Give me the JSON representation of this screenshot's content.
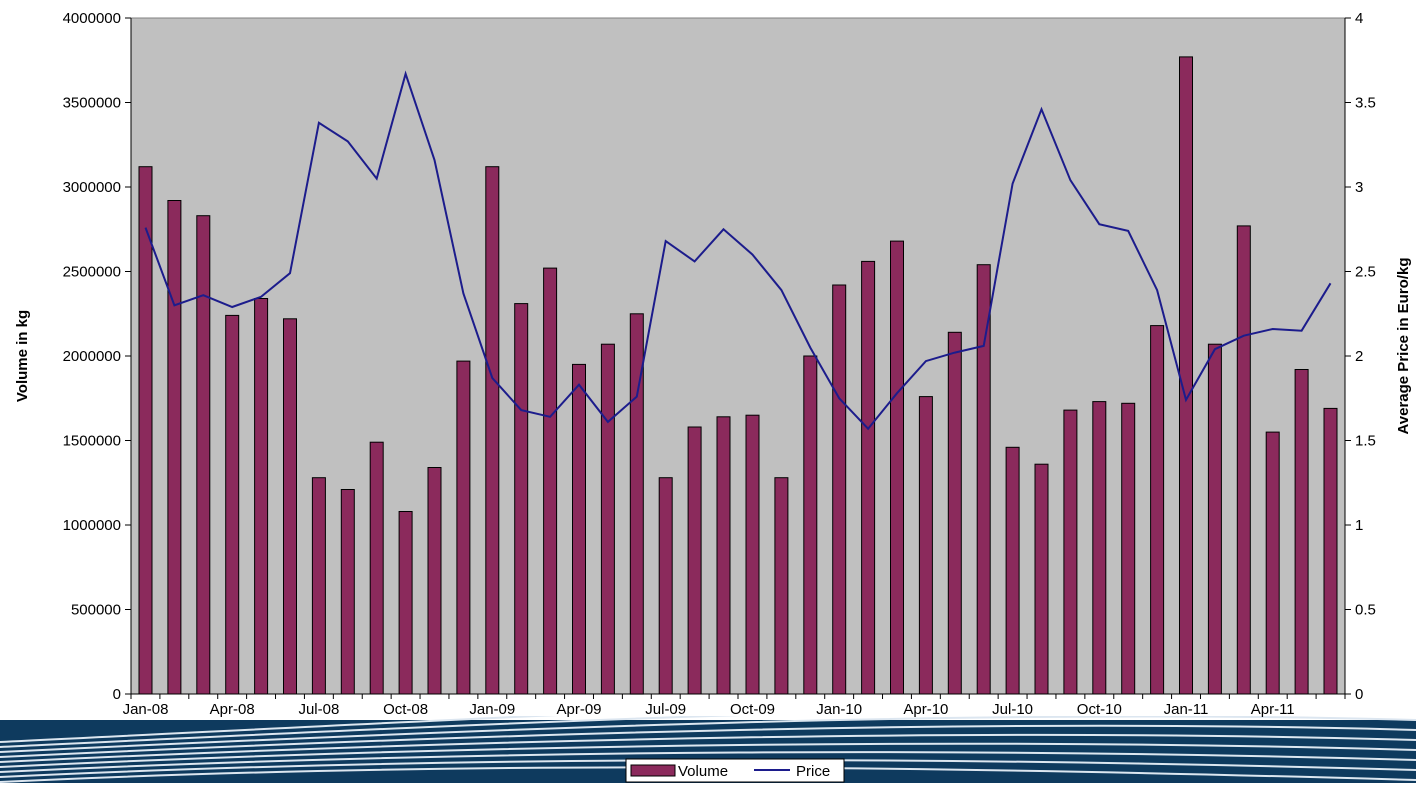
{
  "chart_data": {
    "type": "bar",
    "title": "",
    "xlabel": "",
    "ylabel": "Volume in kg",
    "y2label": "Average Price in Euro/kg",
    "ylim": [
      0,
      4000000
    ],
    "y2lim": [
      0,
      4
    ],
    "yticks": [
      "0",
      "500000",
      "1000000",
      "1500000",
      "2000000",
      "2500000",
      "3000000",
      "3500000",
      "4000000"
    ],
    "y2ticks": [
      "0",
      "0.5",
      "1",
      "1.5",
      "2",
      "2.5",
      "3",
      "3.5",
      "4"
    ],
    "xticks": [
      "Jan-08",
      "Apr-08",
      "Jul-08",
      "Oct-08",
      "Jan-09",
      "Apr-09",
      "Jul-09",
      "Oct-09",
      "Jan-10",
      "Apr-10",
      "Jul-10",
      "Oct-10",
      "Jan-11",
      "Apr-11"
    ],
    "grid": false,
    "legend_position": "bottom-center",
    "categories": [
      "Jan-08",
      "Feb-08",
      "Mar-08",
      "Apr-08",
      "May-08",
      "Jun-08",
      "Jul-08",
      "Aug-08",
      "Sep-08",
      "Oct-08",
      "Nov-08",
      "Dec-08",
      "Jan-09",
      "Feb-09",
      "Mar-09",
      "Apr-09",
      "May-09",
      "Jun-09",
      "Jul-09",
      "Aug-09",
      "Sep-09",
      "Oct-09",
      "Nov-09",
      "Dec-09",
      "Jan-10",
      "Feb-10",
      "Mar-10",
      "Apr-10",
      "May-10",
      "Jun-10",
      "Jul-10",
      "Aug-10",
      "Sep-10",
      "Oct-10",
      "Nov-10",
      "Dec-10",
      "Jan-11",
      "Feb-11",
      "Mar-11",
      "Apr-11",
      "May-11",
      "Jun-11"
    ],
    "series": [
      {
        "name": "Volume",
        "type": "bar",
        "axis": "left",
        "color": "#8B2A5C",
        "values": [
          3120000,
          2920000,
          2830000,
          2240000,
          2340000,
          2220000,
          1280000,
          1210000,
          1490000,
          1080000,
          1340000,
          1970000,
          3120000,
          2310000,
          2520000,
          1950000,
          2070000,
          2250000,
          1280000,
          1580000,
          1640000,
          1650000,
          1280000,
          2000000,
          2420000,
          2560000,
          2680000,
          1760000,
          2140000,
          2540000,
          1460000,
          1360000,
          1680000,
          1730000,
          1720000,
          2180000,
          3770000,
          2070000,
          2770000,
          1550000,
          1920000,
          1690000
        ]
      },
      {
        "name": "Price",
        "type": "line",
        "axis": "right",
        "color": "#1C1C8C",
        "values": [
          2.76,
          2.3,
          2.36,
          2.29,
          2.35,
          2.49,
          3.38,
          3.27,
          3.05,
          3.67,
          3.16,
          2.37,
          1.87,
          1.68,
          1.64,
          1.83,
          1.61,
          1.76,
          2.68,
          2.56,
          2.75,
          2.6,
          2.39,
          2.05,
          1.75,
          1.57,
          1.78,
          1.97,
          2.02,
          2.06,
          3.02,
          3.46,
          3.04,
          2.78,
          2.74,
          2.39,
          1.74,
          2.04,
          2.12,
          2.16,
          2.15,
          2.43
        ]
      }
    ]
  },
  "colors": {
    "plot_background": "#C0C0C0",
    "bar_fill": "#8B2A5C",
    "line_stroke": "#1C1C8C",
    "swoosh_dark": "#0E3A5E",
    "swoosh_light": "#DCE6F0"
  }
}
